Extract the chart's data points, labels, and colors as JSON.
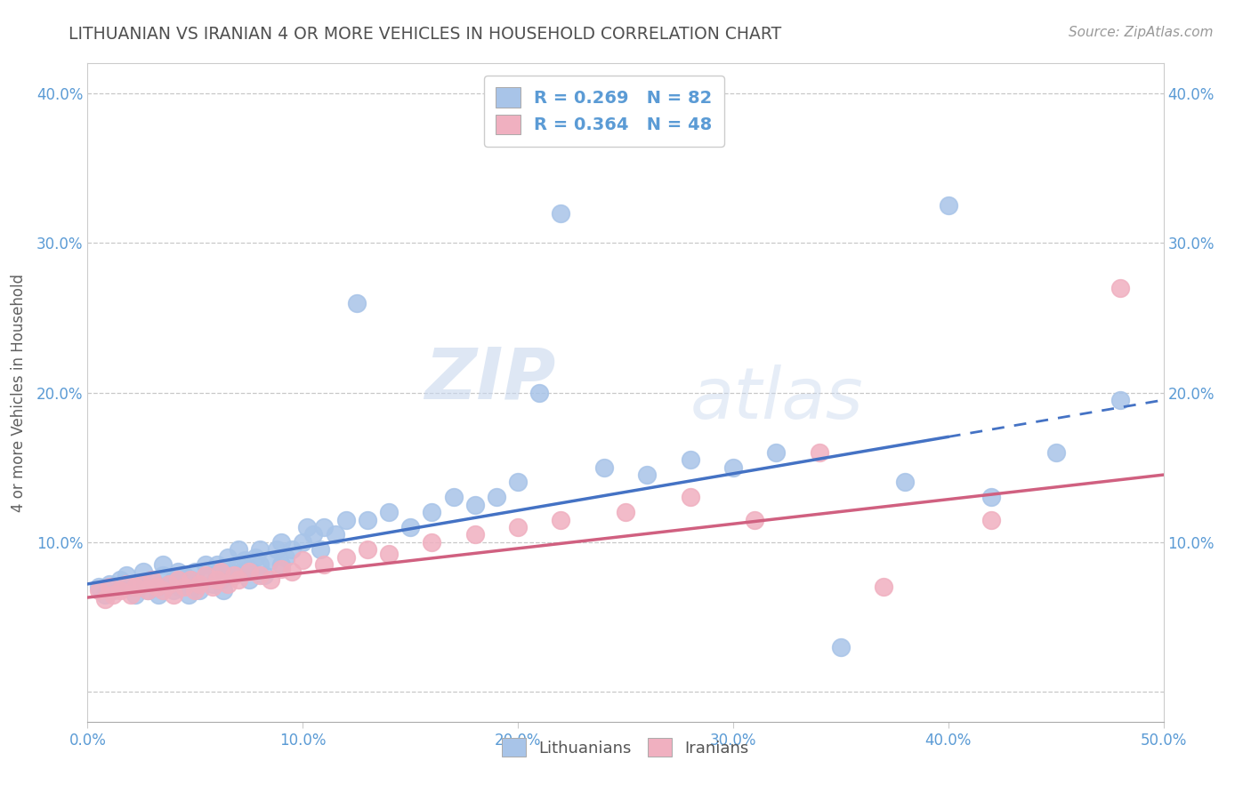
{
  "title": "LITHUANIAN VS IRANIAN 4 OR MORE VEHICLES IN HOUSEHOLD CORRELATION CHART",
  "source": "Source: ZipAtlas.com",
  "ylabel": "4 or more Vehicles in Household",
  "xlabel": "",
  "xlim": [
    0.0,
    0.5
  ],
  "ylim": [
    -0.02,
    0.42
  ],
  "xticks": [
    0.0,
    0.1,
    0.2,
    0.3,
    0.4,
    0.5
  ],
  "xtick_labels": [
    "0.0%",
    "10.0%",
    "20.0%",
    "30.0%",
    "40.0%",
    "50.0%"
  ],
  "yticks": [
    0.0,
    0.1,
    0.2,
    0.3,
    0.4
  ],
  "ytick_labels": [
    "",
    "10.0%",
    "20.0%",
    "30.0%",
    "40.0%"
  ],
  "legend1_r": "0.269",
  "legend1_n": "82",
  "legend2_r": "0.364",
  "legend2_n": "48",
  "blue_color": "#a8c4e8",
  "pink_color": "#f0b0c0",
  "line_blue": "#4472c4",
  "line_pink": "#d06080",
  "watermark_zip": "ZIP",
  "watermark_atlas": "atlas",
  "background_color": "#ffffff",
  "title_color": "#505050",
  "axis_color": "#5b9bd5",
  "lit_scatter_x": [
    0.005,
    0.008,
    0.01,
    0.012,
    0.015,
    0.018,
    0.02,
    0.022,
    0.025,
    0.026,
    0.028,
    0.03,
    0.032,
    0.033,
    0.035,
    0.035,
    0.038,
    0.04,
    0.04,
    0.042,
    0.043,
    0.045,
    0.047,
    0.048,
    0.05,
    0.05,
    0.052,
    0.055,
    0.056,
    0.058,
    0.06,
    0.06,
    0.062,
    0.063,
    0.065,
    0.065,
    0.068,
    0.07,
    0.07,
    0.072,
    0.073,
    0.075,
    0.075,
    0.078,
    0.08,
    0.08,
    0.082,
    0.085,
    0.088,
    0.09,
    0.09,
    0.092,
    0.095,
    0.1,
    0.102,
    0.105,
    0.108,
    0.11,
    0.115,
    0.12,
    0.125,
    0.13,
    0.14,
    0.15,
    0.16,
    0.17,
    0.18,
    0.19,
    0.2,
    0.21,
    0.22,
    0.24,
    0.26,
    0.28,
    0.3,
    0.32,
    0.35,
    0.38,
    0.4,
    0.42,
    0.45,
    0.48
  ],
  "lit_scatter_y": [
    0.07,
    0.065,
    0.072,
    0.068,
    0.075,
    0.078,
    0.07,
    0.065,
    0.072,
    0.08,
    0.068,
    0.075,
    0.07,
    0.065,
    0.078,
    0.085,
    0.072,
    0.068,
    0.075,
    0.08,
    0.07,
    0.078,
    0.065,
    0.075,
    0.08,
    0.072,
    0.068,
    0.085,
    0.078,
    0.072,
    0.08,
    0.085,
    0.075,
    0.068,
    0.082,
    0.09,
    0.078,
    0.085,
    0.095,
    0.08,
    0.088,
    0.075,
    0.082,
    0.09,
    0.085,
    0.095,
    0.078,
    0.088,
    0.095,
    0.085,
    0.1,
    0.09,
    0.095,
    0.1,
    0.11,
    0.105,
    0.095,
    0.11,
    0.105,
    0.115,
    0.26,
    0.115,
    0.12,
    0.11,
    0.12,
    0.13,
    0.125,
    0.13,
    0.14,
    0.2,
    0.32,
    0.15,
    0.145,
    0.155,
    0.15,
    0.16,
    0.03,
    0.14,
    0.325,
    0.13,
    0.16,
    0.195
  ],
  "ira_scatter_x": [
    0.005,
    0.008,
    0.01,
    0.012,
    0.015,
    0.018,
    0.02,
    0.022,
    0.025,
    0.028,
    0.03,
    0.032,
    0.035,
    0.038,
    0.04,
    0.042,
    0.045,
    0.048,
    0.05,
    0.052,
    0.055,
    0.058,
    0.06,
    0.062,
    0.065,
    0.068,
    0.07,
    0.075,
    0.08,
    0.085,
    0.09,
    0.095,
    0.1,
    0.11,
    0.12,
    0.13,
    0.14,
    0.16,
    0.18,
    0.2,
    0.22,
    0.25,
    0.28,
    0.31,
    0.34,
    0.37,
    0.42,
    0.48
  ],
  "ira_scatter_y": [
    0.068,
    0.062,
    0.07,
    0.065,
    0.068,
    0.072,
    0.065,
    0.07,
    0.072,
    0.068,
    0.075,
    0.07,
    0.068,
    0.072,
    0.065,
    0.075,
    0.07,
    0.075,
    0.068,
    0.072,
    0.078,
    0.07,
    0.075,
    0.08,
    0.072,
    0.078,
    0.075,
    0.08,
    0.078,
    0.075,
    0.082,
    0.08,
    0.088,
    0.085,
    0.09,
    0.095,
    0.092,
    0.1,
    0.105,
    0.11,
    0.115,
    0.12,
    0.13,
    0.115,
    0.16,
    0.07,
    0.115,
    0.27
  ],
  "lit_line_x0": 0.0,
  "lit_line_y0": 0.072,
  "lit_line_x1": 0.5,
  "lit_line_y1": 0.195,
  "lit_line_solid_end": 0.4,
  "ira_line_x0": 0.0,
  "ira_line_y0": 0.063,
  "ira_line_x1": 0.5,
  "ira_line_y1": 0.145
}
